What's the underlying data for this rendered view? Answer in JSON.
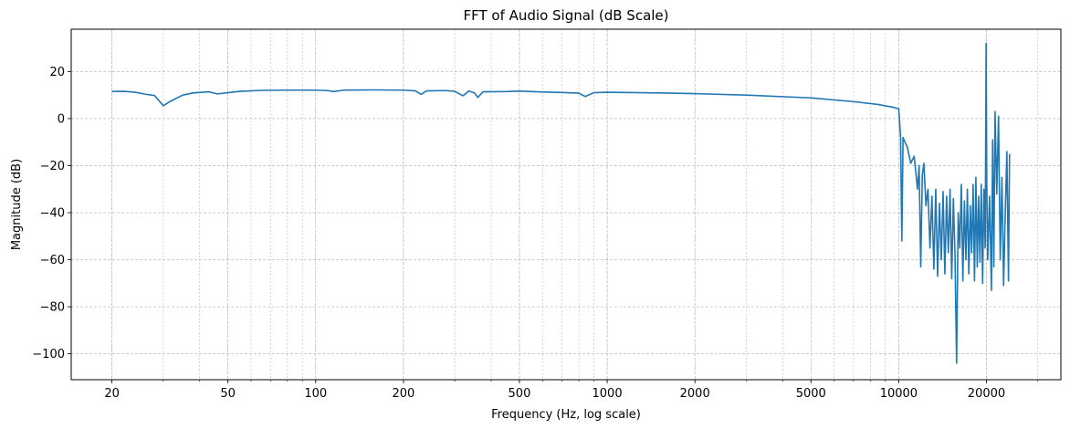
{
  "chart_data": {
    "type": "line",
    "title": "FFT of Audio Signal (dB Scale)",
    "xlabel": "Frequency (Hz, log scale)",
    "ylabel": "Magnitude (dB)",
    "x_scale": "log",
    "xlim": [
      14.5,
      36000
    ],
    "ylim": [
      -111,
      38
    ],
    "grid": true,
    "grid_style": "dashed",
    "line_color": "#1f77b4",
    "x_ticks": [
      20,
      50,
      100,
      200,
      500,
      1000,
      2000,
      5000,
      10000,
      20000
    ],
    "x_tick_labels": [
      "20",
      "50",
      "100",
      "200",
      "500",
      "1000",
      "2000",
      "5000",
      "10000",
      "20000"
    ],
    "y_ticks": [
      20,
      0,
      -20,
      -40,
      -60,
      -80,
      -100
    ],
    "y_tick_labels": [
      "20",
      "0",
      "−20",
      "−40",
      "−60",
      "−80",
      "−100"
    ],
    "series": [
      {
        "points": [
          [
            20,
            11.5
          ],
          [
            22,
            11.6
          ],
          [
            24,
            11.2
          ],
          [
            26,
            10.4
          ],
          [
            28,
            9.8
          ],
          [
            30,
            5.5
          ],
          [
            32,
            7.6
          ],
          [
            35,
            10.0
          ],
          [
            38,
            10.9
          ],
          [
            43,
            11.4
          ],
          [
            46,
            10.5
          ],
          [
            50,
            11.0
          ],
          [
            55,
            11.6
          ],
          [
            65,
            12.0
          ],
          [
            80,
            12.1
          ],
          [
            100,
            12.1
          ],
          [
            110,
            11.9
          ],
          [
            115,
            11.5
          ],
          [
            125,
            12.1
          ],
          [
            160,
            12.2
          ],
          [
            200,
            12.1
          ],
          [
            220,
            11.8
          ],
          [
            230,
            10.3
          ],
          [
            240,
            11.8
          ],
          [
            280,
            11.9
          ],
          [
            300,
            11.6
          ],
          [
            320,
            9.7
          ],
          [
            335,
            11.7
          ],
          [
            350,
            11.0
          ],
          [
            360,
            9.0
          ],
          [
            375,
            11.4
          ],
          [
            450,
            11.5
          ],
          [
            500,
            11.7
          ],
          [
            600,
            11.3
          ],
          [
            700,
            11.1
          ],
          [
            800,
            10.8
          ],
          [
            840,
            9.4
          ],
          [
            870,
            10.2
          ],
          [
            900,
            11.0
          ],
          [
            1000,
            11.2
          ],
          [
            1500,
            10.9
          ],
          [
            2000,
            10.6
          ],
          [
            3000,
            10.0
          ],
          [
            5000,
            8.8
          ],
          [
            7000,
            7.2
          ],
          [
            8500,
            6.0
          ],
          [
            9500,
            4.9
          ],
          [
            10000,
            4.2
          ],
          [
            10150,
            -8.0
          ],
          [
            10250,
            -52.0
          ],
          [
            10350,
            -8.0
          ],
          [
            10500,
            -10.0
          ],
          [
            10700,
            -12.0
          ],
          [
            11000,
            -19.0
          ],
          [
            11300,
            -16.0
          ],
          [
            11600,
            -30.0
          ],
          [
            11750,
            -20.0
          ],
          [
            11900,
            -63.0
          ],
          [
            12050,
            -24.0
          ],
          [
            12200,
            -19.0
          ],
          [
            12400,
            -37.0
          ],
          [
            12600,
            -30.0
          ],
          [
            12800,
            -55.0
          ],
          [
            13000,
            -33.0
          ],
          [
            13200,
            -64.0
          ],
          [
            13400,
            -30.0
          ],
          [
            13600,
            -67.0
          ],
          [
            13800,
            -36.0
          ],
          [
            14000,
            -60.0
          ],
          [
            14200,
            -31.0
          ],
          [
            14400,
            -66.0
          ],
          [
            14600,
            -33.0
          ],
          [
            14800,
            -57.0
          ],
          [
            15000,
            -30.0
          ],
          [
            15200,
            -68.0
          ],
          [
            15400,
            -34.0
          ],
          [
            15600,
            -58.0
          ],
          [
            15800,
            -104.0
          ],
          [
            16000,
            -40.0
          ],
          [
            16200,
            -55.0
          ],
          [
            16400,
            -28.0
          ],
          [
            16600,
            -69.0
          ],
          [
            16800,
            -35.0
          ],
          [
            17000,
            -60.0
          ],
          [
            17200,
            -30.0
          ],
          [
            17400,
            -66.0
          ],
          [
            17600,
            -37.0
          ],
          [
            17800,
            -57.0
          ],
          [
            18000,
            -28.0
          ],
          [
            18200,
            -69.0
          ],
          [
            18400,
            -25.0
          ],
          [
            18600,
            -63.0
          ],
          [
            18800,
            -33.0
          ],
          [
            19000,
            -61.0
          ],
          [
            19200,
            -28.0
          ],
          [
            19400,
            -70.0
          ],
          [
            19600,
            -30.0
          ],
          [
            19800,
            -55.0
          ],
          [
            19950,
            32.0
          ],
          [
            20050,
            -27.0
          ],
          [
            20200,
            -60.0
          ],
          [
            20500,
            -33.0
          ],
          [
            20800,
            -73.0
          ],
          [
            21000,
            -9.0
          ],
          [
            21200,
            -63.0
          ],
          [
            21400,
            3.0
          ],
          [
            21700,
            -32.0
          ],
          [
            22000,
            1.0
          ],
          [
            22300,
            -60.0
          ],
          [
            22600,
            -25.0
          ],
          [
            22900,
            -71.0
          ],
          [
            23200,
            -40.0
          ],
          [
            23500,
            -14.0
          ],
          [
            23800,
            -69.0
          ],
          [
            24000,
            -15.0
          ]
        ]
      }
    ]
  }
}
